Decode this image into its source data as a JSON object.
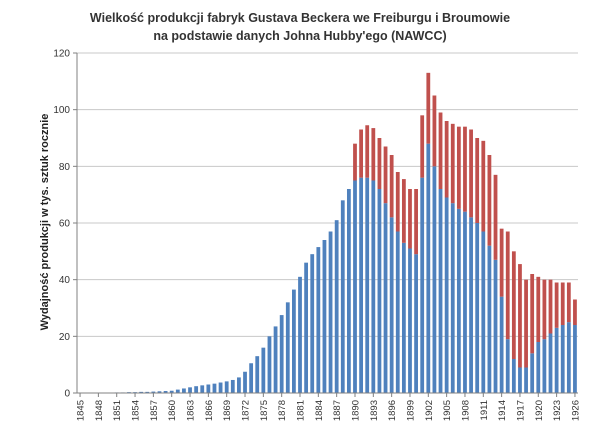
{
  "chart_data": {
    "type": "bar",
    "stacked": true,
    "title": "Wielkość produkcji fabryk Gustava Beckera we Freiburgu i Broumowie",
    "subtitle": "na podstawie danych Johna Hubby'ego  (NAWCC)",
    "ylabel": "Wydajność produkcji w tys. sztuk rocznie",
    "xlabel": "",
    "ylim": [
      0,
      120
    ],
    "yticks": [
      0,
      20,
      40,
      60,
      80,
      100,
      120
    ],
    "xticks": [
      1845,
      1848,
      1851,
      1854,
      1857,
      1860,
      1863,
      1866,
      1869,
      1872,
      1875,
      1878,
      1881,
      1884,
      1887,
      1890,
      1893,
      1896,
      1899,
      1902,
      1905,
      1908,
      1911,
      1914,
      1917,
      1920,
      1923,
      1926
    ],
    "grid": true,
    "legend": "none",
    "colors": {
      "series1": "#4f81bd",
      "series2": "#c0504d"
    },
    "categories": [
      1845,
      1846,
      1847,
      1848,
      1849,
      1850,
      1851,
      1852,
      1853,
      1854,
      1855,
      1856,
      1857,
      1858,
      1859,
      1860,
      1861,
      1862,
      1863,
      1864,
      1865,
      1866,
      1867,
      1868,
      1869,
      1870,
      1871,
      1872,
      1873,
      1874,
      1875,
      1876,
      1877,
      1878,
      1879,
      1880,
      1881,
      1882,
      1883,
      1884,
      1885,
      1886,
      1887,
      1888,
      1889,
      1890,
      1891,
      1892,
      1893,
      1894,
      1895,
      1896,
      1897,
      1898,
      1899,
      1900,
      1901,
      1902,
      1903,
      1904,
      1905,
      1906,
      1907,
      1908,
      1909,
      1910,
      1911,
      1912,
      1913,
      1914,
      1915,
      1916,
      1917,
      1918,
      1919,
      1920,
      1921,
      1922,
      1923,
      1924,
      1925,
      1926
    ],
    "series": [
      {
        "values": [
          0.1,
          0.1,
          0.1,
          0.1,
          0.1,
          0.1,
          0.2,
          0.2,
          0.3,
          0.3,
          0.4,
          0.4,
          0.5,
          0.6,
          0.7,
          0.8,
          1.2,
          1.6,
          2.0,
          2.4,
          2.7,
          3.0,
          3.3,
          3.7,
          4.1,
          4.6,
          5.5,
          7.5,
          10.5,
          13.0,
          16.0,
          20.0,
          23.5,
          27.5,
          32.0,
          36.5,
          41.0,
          46.0,
          49.0,
          51.5,
          54.0,
          57.0,
          61.0,
          68.0,
          72.0,
          75.0,
          76.0,
          76.0,
          75.0,
          72.0,
          67.0,
          62.0,
          57.0,
          53.0,
          51.0,
          49.0,
          76.0,
          88.0,
          80.0,
          72.0,
          69.0,
          67.0,
          65.0,
          64.0,
          62.0,
          60.0,
          57.0,
          52.0,
          47.0,
          34.0,
          19.0,
          12.0,
          9.0,
          9.0,
          14.0,
          18.0,
          19.0,
          21.0,
          23.0,
          24.0,
          25.0,
          24.0
        ]
      },
      {
        "values": [
          0,
          0,
          0,
          0,
          0,
          0,
          0,
          0,
          0,
          0,
          0,
          0,
          0,
          0,
          0,
          0,
          0,
          0,
          0,
          0,
          0,
          0,
          0,
          0,
          0,
          0,
          0,
          0,
          0,
          0,
          0,
          0,
          0,
          0,
          0,
          0,
          0,
          0,
          0,
          0,
          0,
          0,
          0,
          0,
          0,
          13.0,
          17.0,
          18.5,
          18.5,
          18.0,
          20.0,
          22.0,
          21.0,
          22.5,
          21.0,
          23.0,
          22.0,
          25.0,
          25.0,
          27.0,
          27.0,
          28.0,
          29.0,
          30.0,
          31.0,
          30.0,
          32.0,
          32.0,
          30.0,
          24.0,
          38.0,
          38.0,
          36.5,
          31.0,
          28.0,
          23.0,
          21.0,
          19.0,
          16.0,
          15.0,
          14.0,
          9.0
        ]
      }
    ]
  }
}
